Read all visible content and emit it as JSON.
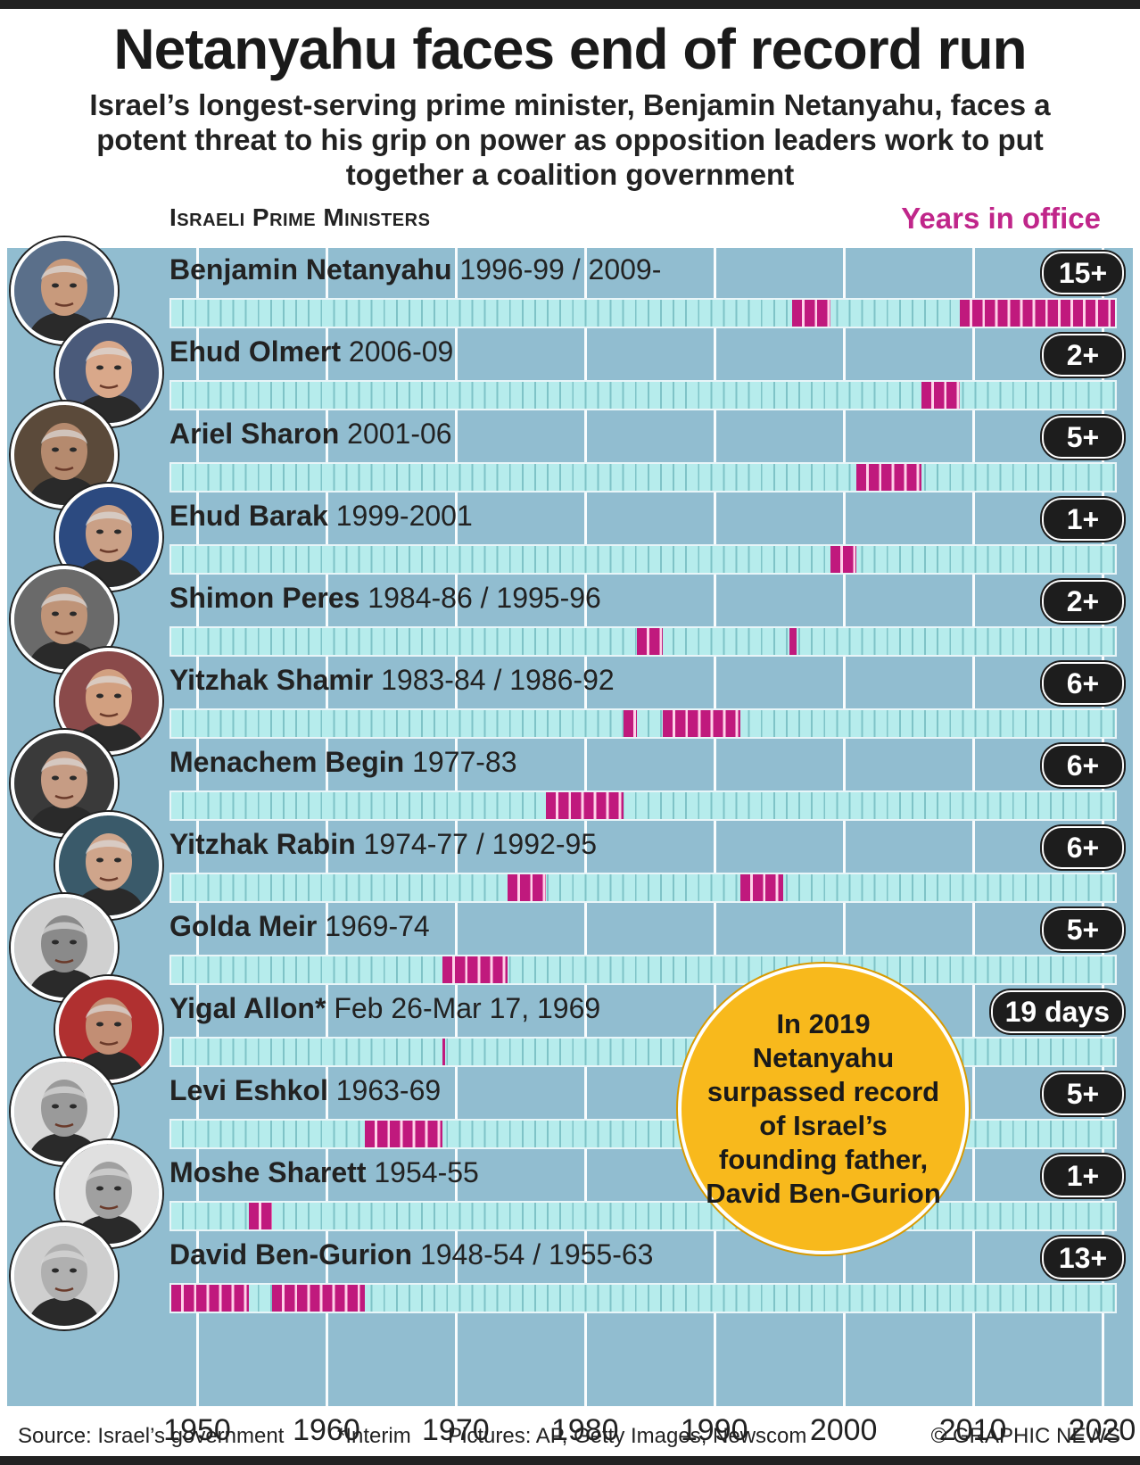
{
  "title": "Netanyahu faces end of record run",
  "subtitle": "Israel’s longest-serving prime minister, Benjamin Netanyahu, faces a potent threat to his grip on power as opposition leaders work to put together a coalition government",
  "section_label": "Israeli Prime Ministers",
  "years_label": "Years in office",
  "callout": "In 2019 Netanyahu surpassed record of Israel’s founding father, David Ben-Gurion",
  "footer": {
    "source": "Source: Israel’s government",
    "note": "*Interim",
    "pictures": "Pictures: AP, Getty Images, Newscom",
    "credit": "© GRAPHIC NEWS"
  },
  "colors": {
    "panel": "#91bdd0",
    "term": "#c0197d",
    "track": "#b6ecec",
    "badge": "#1d1d1d",
    "callout": "#f8b91c",
    "accent": "#c0268a"
  },
  "chart_data": {
    "type": "bar",
    "title": "Israeli Prime Ministers",
    "xlabel": "",
    "ylabel": "Years in office",
    "xlim": [
      1948,
      2021
    ],
    "x_ticks": [
      1950,
      1960,
      1970,
      1980,
      1990,
      2000,
      2010,
      2020
    ],
    "series": [
      {
        "name": "Benjamin Netanyahu",
        "label": "1996-99 / 2009-",
        "badge": "15+",
        "terms": [
          [
            1996,
            1999
          ],
          [
            2009,
            2021
          ]
        ]
      },
      {
        "name": "Ehud Olmert",
        "label": "2006-09",
        "badge": "2+",
        "terms": [
          [
            2006,
            2009
          ]
        ]
      },
      {
        "name": "Ariel Sharon",
        "label": "2001-06",
        "badge": "5+",
        "terms": [
          [
            2001,
            2006
          ]
        ]
      },
      {
        "name": "Ehud Barak",
        "label": "1999-2001",
        "badge": "1+",
        "terms": [
          [
            1999,
            2001
          ]
        ]
      },
      {
        "name": "Shimon Peres",
        "label": "1984-86 / 1995-96",
        "badge": "2+",
        "terms": [
          [
            1984,
            1986
          ],
          [
            1995.8,
            1996.4
          ]
        ]
      },
      {
        "name": "Yitzhak Shamir",
        "label": "1983-84 / 1986-92",
        "badge": "6+",
        "terms": [
          [
            1983,
            1984
          ],
          [
            1986,
            1992
          ]
        ]
      },
      {
        "name": "Menachem Begin",
        "label": "1977-83",
        "badge": "6+",
        "terms": [
          [
            1977,
            1983
          ]
        ]
      },
      {
        "name": "Yitzhak Rabin",
        "label": "1974-77 / 1992-95",
        "badge": "6+",
        "terms": [
          [
            1974,
            1977
          ],
          [
            1992,
            1995.3
          ]
        ]
      },
      {
        "name": "Golda Meir",
        "label": "1969-74",
        "badge": "5+",
        "terms": [
          [
            1969,
            1974
          ]
        ]
      },
      {
        "name": "Yigal Allon*",
        "label": "Feb 26-Mar 17, 1969",
        "badge": "19 days",
        "terms": [
          [
            1969.0,
            1969.15
          ]
        ]
      },
      {
        "name": "Levi Eshkol",
        "label": "1963-69",
        "badge": "5+",
        "terms": [
          [
            1963,
            1969
          ]
        ]
      },
      {
        "name": "Moshe Sharett",
        "label": "1954-55",
        "badge": "1+",
        "terms": [
          [
            1954,
            1955.8
          ]
        ]
      },
      {
        "name": "David Ben-Gurion",
        "label": "1948-54 / 1955-63",
        "badge": "13+",
        "terms": [
          [
            1948,
            1954
          ],
          [
            1955.8,
            1963
          ]
        ]
      }
    ]
  }
}
